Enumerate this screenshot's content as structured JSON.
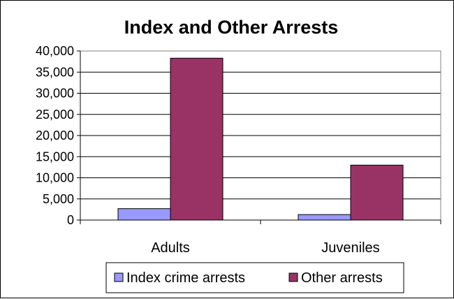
{
  "colors": {
    "index": "#9999ff",
    "other": "#993366",
    "plot_border": "#808080",
    "grid": "#000000"
  },
  "chart_data": {
    "type": "bar",
    "title": "Index and Other Arrests",
    "categories": [
      "Adults",
      "Juveniles"
    ],
    "series": [
      {
        "name": "Index crime arrests",
        "values": [
          2700,
          1300
        ]
      },
      {
        "name": "Other arrests",
        "values": [
          38300,
          13000
        ]
      }
    ],
    "ylim": [
      0,
      40000
    ],
    "yticks": [
      0,
      5000,
      10000,
      15000,
      20000,
      25000,
      30000,
      35000,
      40000
    ],
    "ytick_labels": [
      "0",
      "5,000",
      "10,000",
      "15,000",
      "20,000",
      "25,000",
      "30,000",
      "35,000",
      "40,000"
    ],
    "grid": true,
    "legend_position": "bottom"
  }
}
